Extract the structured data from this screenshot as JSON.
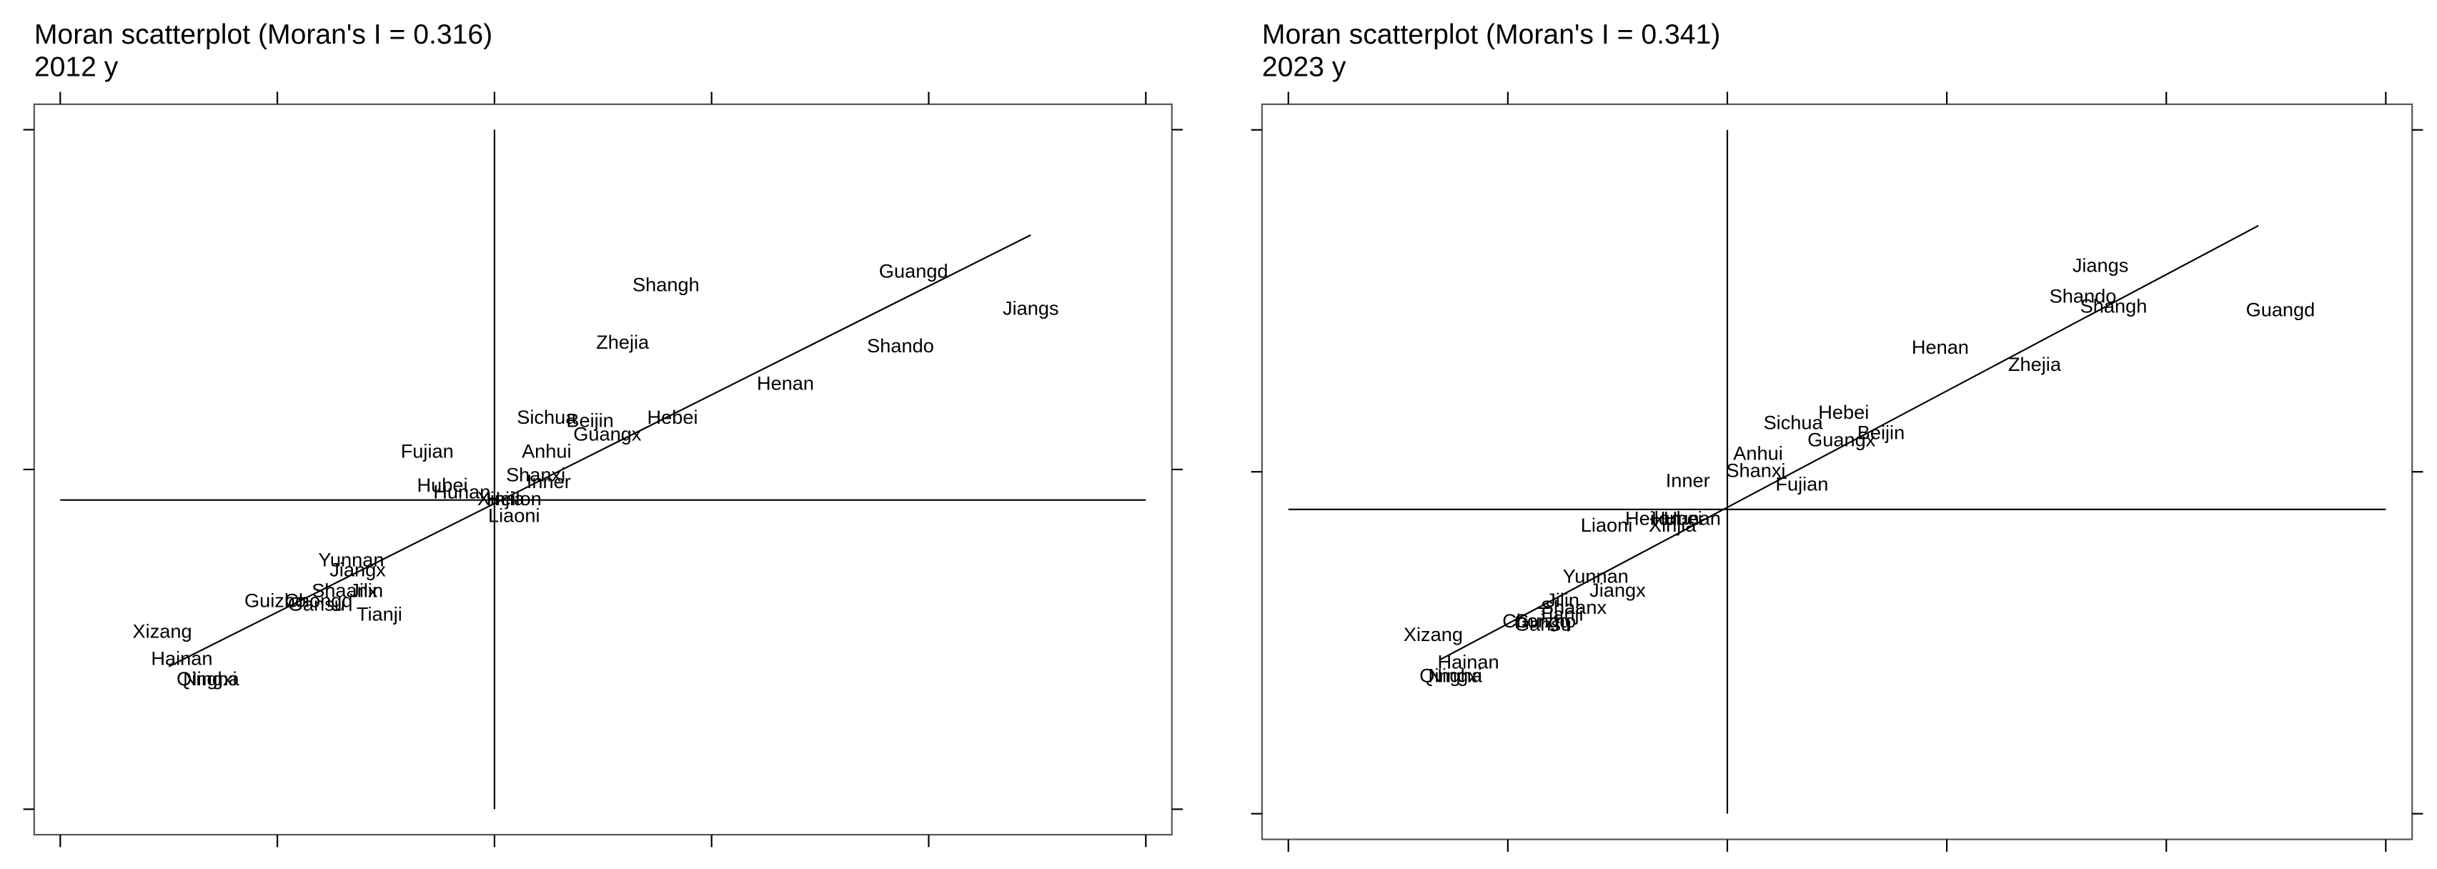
{
  "chart_data": [
    {
      "type": "scatter",
      "title": "Moran scatterplot (Moran's I = 0.316)",
      "subtitle": "2012 y",
      "xlim": [
        -2.12,
        3.12
      ],
      "ylim": [
        -1.075,
        1.075
      ],
      "xticks": [
        -2,
        -1,
        0,
        1,
        2,
        3
      ],
      "yticks": [
        -1,
        0,
        1
      ],
      "vline": 0,
      "hline": -0.09,
      "fit": {
        "x": [
          -1.5,
          2.47
        ],
        "y": [
          -0.58,
          0.69
        ]
      },
      "labels": [
        "Shangh",
        "Guangd",
        "Jiangs",
        "Zhejia",
        "Shando",
        "Henan",
        "Sichua",
        "Beijin",
        "Hebei",
        "Guangx",
        "Fujian",
        "Anhui",
        "Shanxi",
        "Inner",
        "Hubei",
        "Hunan",
        "Xinjia",
        "Heilon",
        "Liaoni",
        "Yunnan",
        "Jiangx",
        "Shaanx",
        "Jilin",
        "Guizho",
        "Chongq",
        "Gansu",
        "Tianji",
        "Xizang",
        "Hainan",
        "Qingha",
        "Ningxi"
      ],
      "x": [
        0.79,
        1.93,
        2.47,
        0.59,
        1.87,
        1.34,
        0.24,
        0.44,
        0.82,
        0.52,
        -0.31,
        0.24,
        0.19,
        0.25,
        -0.24,
        -0.15,
        0.03,
        0.09,
        0.09,
        -0.66,
        -0.63,
        -0.69,
        -0.59,
        -1.01,
        -0.81,
        -0.82,
        -0.53,
        -1.53,
        -1.44,
        -1.32,
        -1.31
      ],
      "y": [
        0.54,
        0.58,
        0.47,
        0.37,
        0.36,
        0.25,
        0.15,
        0.14,
        0.15,
        0.1,
        0.05,
        0.05,
        -0.02,
        -0.04,
        -0.05,
        -0.07,
        -0.09,
        -0.09,
        -0.14,
        -0.27,
        -0.3,
        -0.36,
        -0.36,
        -0.39,
        -0.39,
        -0.4,
        -0.43,
        -0.48,
        -0.56,
        -0.62,
        -0.62
      ]
    },
    {
      "type": "scatter",
      "title": "Moran scatterplot (Moran's I = 0.341)",
      "subtitle": "2023 y",
      "xlim": [
        -2.12,
        3.12
      ],
      "ylim": [
        -1.075,
        1.075
      ],
      "xticks": [
        -2,
        -1,
        0,
        1,
        2,
        3
      ],
      "yticks": [
        -1,
        0,
        1
      ],
      "vline": 0,
      "hline": -0.11,
      "fit": {
        "x": [
          -1.31,
          2.42
        ],
        "y": [
          -0.55,
          0.72
        ]
      },
      "labels": [
        "Jiangs",
        "Shando",
        "Shangh",
        "Guangd",
        "Henan",
        "Zhejia",
        "Hebei",
        "Sichua",
        "Beijin",
        "Guangx",
        "Anhui",
        "Shanxi",
        "Inner",
        "Fujian",
        "Heilon",
        "Hubei",
        "Hunan",
        "Liaoni",
        "Xinjia",
        "Yunnan",
        "Jiangx",
        "Jilin",
        "Shaanx",
        "Chongq",
        "Gansu",
        "Guizho",
        "Tianji",
        "Xizang",
        "Hainan",
        "Qingha",
        "Ningxi"
      ],
      "x": [
        1.7,
        1.62,
        1.76,
        2.52,
        0.97,
        1.4,
        0.53,
        0.3,
        0.7,
        0.52,
        0.14,
        0.13,
        -0.18,
        0.34,
        -0.34,
        -0.23,
        -0.16,
        -0.55,
        -0.25,
        -0.6,
        -0.5,
        -0.75,
        -0.7,
        -0.87,
        -0.84,
        -0.83,
        -0.76,
        -1.34,
        -1.18,
        -1.26,
        -1.24
      ],
      "y": [
        0.6,
        0.51,
        0.48,
        0.47,
        0.36,
        0.31,
        0.17,
        0.14,
        0.11,
        0.09,
        0.05,
        0.0,
        -0.03,
        -0.04,
        -0.14,
        -0.14,
        -0.14,
        -0.16,
        -0.16,
        -0.31,
        -0.35,
        -0.38,
        -0.4,
        -0.44,
        -0.45,
        -0.44,
        -0.42,
        -0.48,
        -0.56,
        -0.6,
        -0.6
      ]
    }
  ]
}
